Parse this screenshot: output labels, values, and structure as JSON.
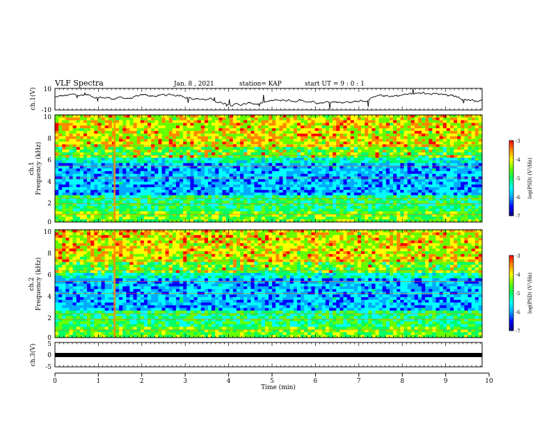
{
  "header": {
    "title": "VLF Spectra",
    "date": "Jan. 8 , 2021",
    "station": "station= KAP",
    "start": "start UT = 9 : 0 : 1"
  },
  "colors": {
    "scale": [
      "#000080",
      "#0000ff",
      "#00aaff",
      "#00ffff",
      "#00ff66",
      "#66ff00",
      "#ffff00",
      "#ff8800",
      "#ff0000"
    ],
    "trace": "#000000"
  },
  "chart_data": [
    {
      "type": "line",
      "ylabel": "ch.1(V)",
      "ylim": [
        -10,
        10
      ],
      "y_ticks": [
        "10",
        "-10"
      ],
      "xlim": [
        0,
        10
      ],
      "series": [
        {
          "values_note": "",
          "level_min": -6,
          "level_max": 6
        }
      ]
    },
    {
      "type": "heatmap",
      "ylabel_channel": "ch.1",
      "ylabel": "Frequency (kHz)",
      "ylim": [
        0,
        10
      ],
      "y_ticks": [
        "0",
        "2",
        "4",
        "6",
        "8",
        "10"
      ],
      "xlim": [
        0,
        10
      ],
      "colorbar": {
        "label": "log(PSD) (V²/Hz)",
        "range": [
          -7,
          -3
        ],
        "ticks": [
          "-3",
          "-4",
          "-5",
          "-6",
          "-7"
        ]
      }
    },
    {
      "type": "heatmap",
      "ylabel_channel": "ch.2",
      "ylabel": "Frequency (kHz)",
      "ylim": [
        0,
        10
      ],
      "y_ticks": [
        "0",
        "2",
        "4",
        "6",
        "8",
        "10"
      ],
      "xlim": [
        0,
        10
      ],
      "colorbar": {
        "label": "log(PSD) (V²/Hz)",
        "range": [
          -7,
          -3
        ],
        "ticks": [
          "-3",
          "-4",
          "-5",
          "-6",
          "-7"
        ]
      }
    },
    {
      "type": "line",
      "ylabel": "ch.3(V)",
      "ylim": [
        -5,
        5
      ],
      "y_ticks": [
        "5",
        "0",
        "-5"
      ],
      "xlim": [
        0,
        10
      ],
      "series": [
        {
          "level": 0
        }
      ]
    }
  ],
  "xaxis": {
    "label": "Time (min)",
    "ticks": [
      "0",
      "1",
      "2",
      "3",
      "4",
      "5",
      "6",
      "7",
      "8",
      "9",
      "10"
    ]
  }
}
